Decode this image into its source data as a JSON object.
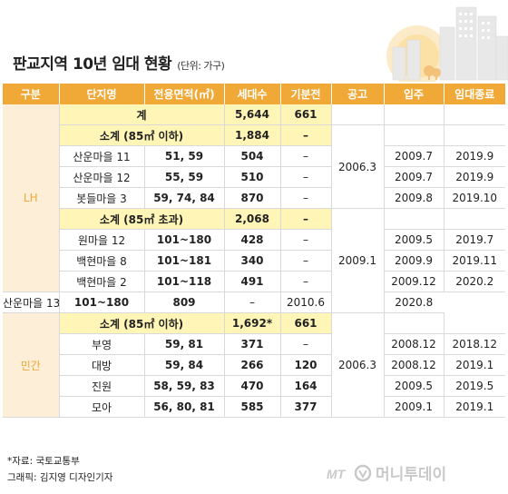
{
  "title": "판교지역 10년 임대 현황",
  "unit": "(단위: 가구)",
  "columns": [
    "구분",
    "단지명",
    "전용면적(㎡)",
    "세대수",
    "기분전",
    "공고",
    "입주",
    "임대종료"
  ],
  "total": {
    "label": "계",
    "households": "5,644",
    "prev": "661"
  },
  "groups": {
    "lh": "LH",
    "private": "민간"
  },
  "lh_a": {
    "subtotal_label": "소계 (85㎡ 이하)",
    "subtotal_households": "1,884",
    "subtotal_prev": "–",
    "notice": "2006.3",
    "rows": [
      {
        "name": "산운마을 11",
        "area": "51, 59",
        "households": "504",
        "prev": "–",
        "move_in": "2009.7",
        "end": "2019.9"
      },
      {
        "name": "산운마을 12",
        "area": "55, 59",
        "households": "510",
        "prev": "–",
        "move_in": "2009.7",
        "end": "2019.9"
      },
      {
        "name": "봇들마을 3",
        "area": "59, 74, 84",
        "households": "870",
        "prev": "–",
        "move_in": "2009.8",
        "end": "2019.10"
      }
    ]
  },
  "lh_b": {
    "subtotal_label": "소계 (85㎡ 초과)",
    "subtotal_households": "2,068",
    "subtotal_prev": "–",
    "notice": "2009.1",
    "rows": [
      {
        "name": "원마을 12",
        "area": "101~180",
        "households": "428",
        "prev": "–",
        "move_in": "2009.5",
        "end": "2019.7"
      },
      {
        "name": "백현마을 8",
        "area": "101~181",
        "households": "340",
        "prev": "–",
        "move_in": "2009.9",
        "end": "2019.11"
      },
      {
        "name": "백현마을 2",
        "area": "101~118",
        "households": "491",
        "prev": "–",
        "move_in": "2009.12",
        "end": "2020.2"
      },
      {
        "name": "산운마을 13",
        "area": "101~180",
        "households": "809",
        "prev": "–",
        "move_in": "2010.6",
        "end": "2020.8"
      }
    ]
  },
  "priv": {
    "subtotal_label": "소계 (85㎡ 이하)",
    "subtotal_households": "1,692*",
    "subtotal_prev": "661",
    "notice": "2006.3",
    "rows": [
      {
        "name": "부영",
        "area": "59, 81",
        "households": "371",
        "prev": "–",
        "move_in": "2008.12",
        "end": "2018.12"
      },
      {
        "name": "대방",
        "area": "59, 84",
        "households": "266",
        "prev": "120",
        "move_in": "2008.12",
        "end": "2019.1"
      },
      {
        "name": "진원",
        "area": "58, 59, 83",
        "households": "470",
        "prev": "164",
        "move_in": "2009.5",
        "end": "2019.5"
      },
      {
        "name": "모아",
        "area": "56, 80, 81",
        "households": "585",
        "prev": "377",
        "move_in": "2009.1",
        "end": "2019.1"
      }
    ]
  },
  "footer": {
    "source": "*자료: 국토교통부",
    "graphic": "그래픽: 김지영 디자인기자"
  },
  "brand": {
    "mt": "MT",
    "name": "머니투데이"
  },
  "colors": {
    "header": "#f0a937",
    "subtotal": "#fff5b7",
    "group": "#fdeed7"
  }
}
